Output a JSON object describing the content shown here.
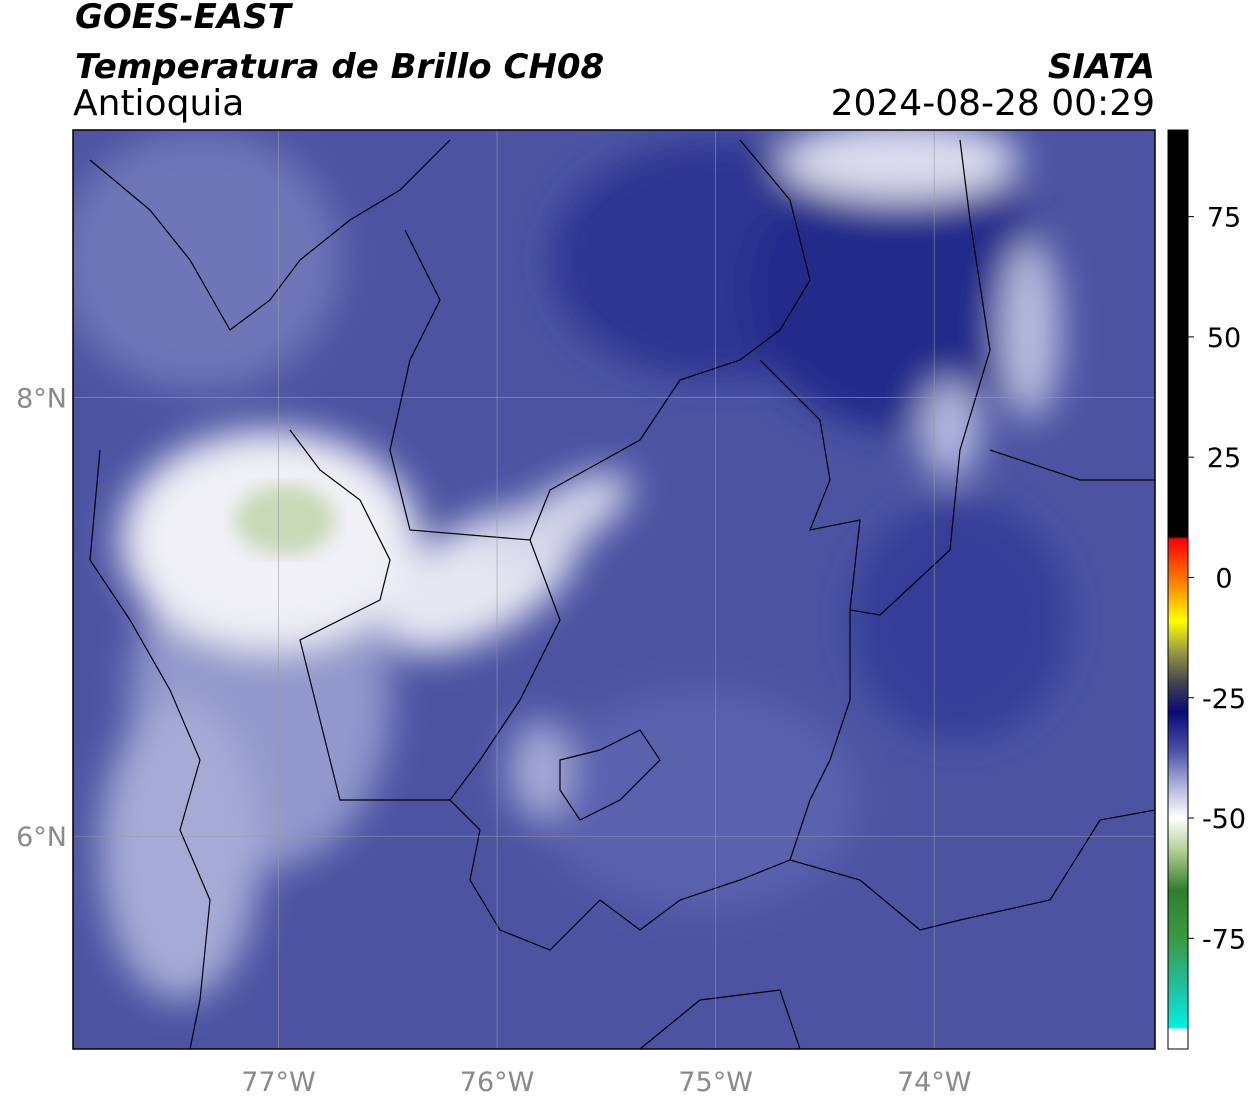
{
  "header": {
    "title": "GOES-EAST",
    "subtitle": "Temperatura de Brillo CH08",
    "region": "Antioquia",
    "source": "SIATA",
    "datetime": "2024-08-28 00:29"
  },
  "map": {
    "xlim": [
      -77.94,
      -72.99
    ],
    "ylim": [
      5.03,
      9.22
    ],
    "xticks": [
      {
        "value": -77,
        "label": "77°W"
      },
      {
        "value": -76,
        "label": "76°W"
      },
      {
        "value": -75,
        "label": "75°W"
      },
      {
        "value": -74,
        "label": "74°W"
      }
    ],
    "yticks": [
      {
        "value": 6,
        "label": "6°N"
      },
      {
        "value": 8,
        "label": "8°N"
      }
    ],
    "grid": true
  },
  "colorbar": {
    "lim": [
      -98,
      93
    ],
    "ticks": [
      -75,
      -50,
      -25,
      0,
      25,
      50,
      75
    ],
    "stops": [
      {
        "value": -98,
        "color": "#ffffff"
      },
      {
        "value": -94,
        "color": "#ffffff"
      },
      {
        "value": -93.5,
        "color": "#00f0e0"
      },
      {
        "value": -85,
        "color": "#20c0a0"
      },
      {
        "value": -75,
        "color": "#3a9a40"
      },
      {
        "value": -65,
        "color": "#2f7f2f"
      },
      {
        "value": -57,
        "color": "#b0cc90"
      },
      {
        "value": -50,
        "color": "#ffffff"
      },
      {
        "value": -44,
        "color": "#b8bce0"
      },
      {
        "value": -36,
        "color": "#4a52a8"
      },
      {
        "value": -28,
        "color": "#0a0a78"
      },
      {
        "value": -22,
        "color": "#404050"
      },
      {
        "value": -15,
        "color": "#a0a040"
      },
      {
        "value": -9,
        "color": "#ffff00"
      },
      {
        "value": -2,
        "color": "#ff9000"
      },
      {
        "value": 8,
        "color": "#ff0000"
      },
      {
        "value": 8.5,
        "color": "#000000"
      },
      {
        "value": 93,
        "color": "#000000"
      }
    ]
  }
}
